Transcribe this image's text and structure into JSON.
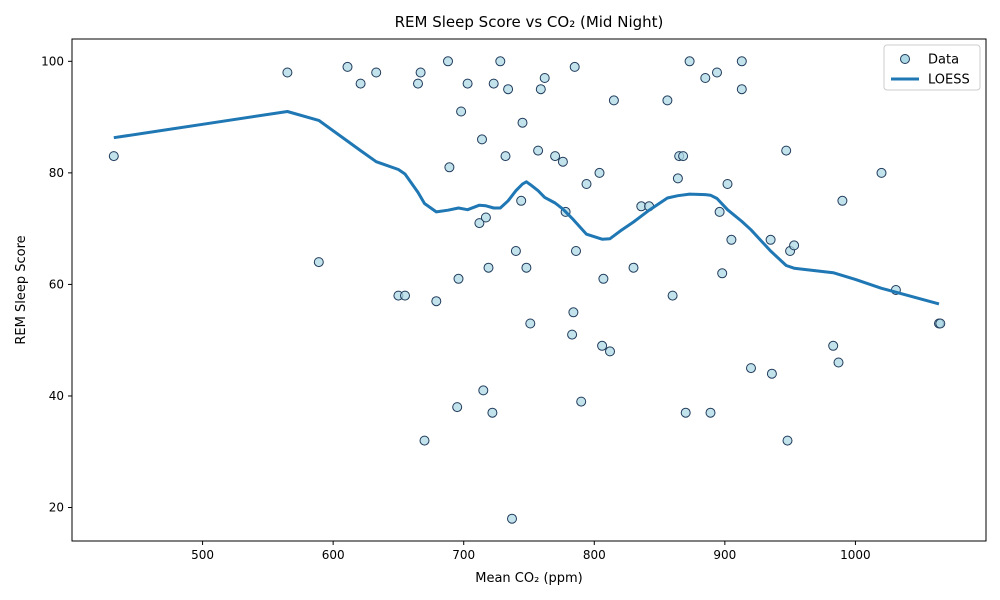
{
  "chart_data": {
    "type": "scatter",
    "title": "REM Sleep Score vs CO₂ (Mid Night)",
    "xlabel": "Mean CO₂ (ppm)",
    "ylabel": "REM Sleep Score",
    "xlim": [
      400,
      1100
    ],
    "ylim": [
      14,
      104
    ],
    "xticks": [
      500,
      600,
      700,
      800,
      900,
      1000
    ],
    "yticks": [
      20,
      40,
      60,
      80,
      100
    ],
    "grid": false,
    "legend_position": "top-right",
    "series": [
      {
        "name": "Data",
        "kind": "scatter",
        "color": "#add8e6",
        "edge_color": "#1f3a5a",
        "points": [
          [
            432,
            83
          ],
          [
            565,
            98
          ],
          [
            589,
            64
          ],
          [
            611,
            99
          ],
          [
            621,
            96
          ],
          [
            633,
            98
          ],
          [
            650,
            58
          ],
          [
            655,
            58
          ],
          [
            665,
            96
          ],
          [
            667,
            98
          ],
          [
            670,
            32
          ],
          [
            679,
            57
          ],
          [
            688,
            100
          ],
          [
            689,
            81
          ],
          [
            695,
            38
          ],
          [
            696,
            61
          ],
          [
            698,
            91
          ],
          [
            703,
            96
          ],
          [
            712,
            71
          ],
          [
            714,
            86
          ],
          [
            715,
            41
          ],
          [
            717,
            72
          ],
          [
            719,
            63
          ],
          [
            722,
            37
          ],
          [
            723,
            96
          ],
          [
            728,
            100
          ],
          [
            732,
            83
          ],
          [
            734,
            95
          ],
          [
            737,
            18
          ],
          [
            740,
            66
          ],
          [
            744,
            75
          ],
          [
            745,
            89
          ],
          [
            748,
            63
          ],
          [
            751,
            53
          ],
          [
            757,
            84
          ],
          [
            759,
            95
          ],
          [
            762,
            97
          ],
          [
            770,
            83
          ],
          [
            776,
            82
          ],
          [
            778,
            73
          ],
          [
            783,
            51
          ],
          [
            784,
            55
          ],
          [
            785,
            99
          ],
          [
            786,
            66
          ],
          [
            790,
            39
          ],
          [
            794,
            78
          ],
          [
            804,
            80
          ],
          [
            806,
            49
          ],
          [
            807,
            61
          ],
          [
            812,
            48
          ],
          [
            815,
            93
          ],
          [
            830,
            63
          ],
          [
            836,
            74
          ],
          [
            842,
            74
          ],
          [
            856,
            93
          ],
          [
            860,
            58
          ],
          [
            864,
            79
          ],
          [
            865,
            83
          ],
          [
            868,
            83
          ],
          [
            870,
            37
          ],
          [
            873,
            100
          ],
          [
            885,
            97
          ],
          [
            889,
            37
          ],
          [
            894,
            98
          ],
          [
            896,
            73
          ],
          [
            898,
            62
          ],
          [
            902,
            78
          ],
          [
            905,
            68
          ],
          [
            913,
            100
          ],
          [
            913,
            95
          ],
          [
            920,
            45
          ],
          [
            935,
            68
          ],
          [
            936,
            44
          ],
          [
            947,
            84
          ],
          [
            948,
            32
          ],
          [
            950,
            66
          ],
          [
            953,
            67
          ],
          [
            983,
            49
          ],
          [
            987,
            46
          ],
          [
            990,
            75
          ],
          [
            1020,
            80
          ],
          [
            1031,
            59
          ],
          [
            1064,
            53
          ],
          [
            1065,
            53
          ]
        ]
      },
      {
        "name": "LOESS",
        "kind": "line",
        "color": "#1f77b4",
        "points": [
          [
            432,
            86.3
          ],
          [
            500,
            88.7
          ],
          [
            565,
            91.0
          ],
          [
            589,
            89.4
          ],
          [
            611,
            85.7
          ],
          [
            621,
            84.0
          ],
          [
            633,
            82.0
          ],
          [
            650,
            80.6
          ],
          [
            655,
            79.8
          ],
          [
            665,
            76.5
          ],
          [
            670,
            74.5
          ],
          [
            679,
            73.0
          ],
          [
            688,
            73.3
          ],
          [
            696,
            73.7
          ],
          [
            703,
            73.4
          ],
          [
            712,
            74.2
          ],
          [
            717,
            74.1
          ],
          [
            723,
            73.7
          ],
          [
            728,
            73.7
          ],
          [
            734,
            75.0
          ],
          [
            740,
            76.8
          ],
          [
            745,
            78.0
          ],
          [
            748,
            78.4
          ],
          [
            751,
            77.9
          ],
          [
            757,
            76.8
          ],
          [
            762,
            75.6
          ],
          [
            770,
            74.6
          ],
          [
            776,
            73.5
          ],
          [
            784,
            71.6
          ],
          [
            794,
            69.0
          ],
          [
            806,
            68.1
          ],
          [
            812,
            68.2
          ],
          [
            820,
            69.6
          ],
          [
            830,
            71.2
          ],
          [
            842,
            73.3
          ],
          [
            856,
            75.5
          ],
          [
            864,
            75.9
          ],
          [
            873,
            76.2
          ],
          [
            885,
            76.1
          ],
          [
            889,
            76.0
          ],
          [
            894,
            75.4
          ],
          [
            902,
            73.4
          ],
          [
            913,
            71.3
          ],
          [
            920,
            69.8
          ],
          [
            935,
            66.0
          ],
          [
            947,
            63.4
          ],
          [
            953,
            62.9
          ],
          [
            983,
            62.1
          ],
          [
            1000,
            60.9
          ],
          [
            1020,
            59.3
          ],
          [
            1064,
            56.5
          ]
        ]
      }
    ]
  }
}
